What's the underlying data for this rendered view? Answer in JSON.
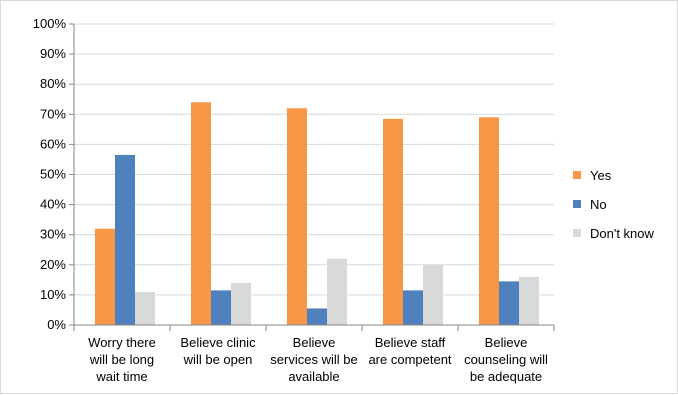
{
  "chart_data": {
    "type": "bar",
    "title": "",
    "xlabel": "",
    "ylabel": "",
    "ylim": [
      0,
      100
    ],
    "y_ticks": [
      "0%",
      "10%",
      "20%",
      "30%",
      "40%",
      "50%",
      "60%",
      "70%",
      "80%",
      "90%",
      "100%"
    ],
    "y_tick_values": [
      0,
      10,
      20,
      30,
      40,
      50,
      60,
      70,
      80,
      90,
      100
    ],
    "grid": true,
    "legend_position": "right",
    "categories": [
      [
        "Worry there",
        "will be long",
        "wait time"
      ],
      [
        "Believe clinic",
        "will be open"
      ],
      [
        "Believe",
        "services will be",
        "available"
      ],
      [
        "Believe staff",
        "are competent"
      ],
      [
        "Believe",
        "counseling will",
        "be adequate"
      ]
    ],
    "series": [
      {
        "name": "Yes",
        "color": "#F79646",
        "values": [
          32,
          74,
          72,
          68.5,
          69
        ]
      },
      {
        "name": "No",
        "color": "#4F81BD",
        "values": [
          56.5,
          11.5,
          5.5,
          11.5,
          14.5
        ]
      },
      {
        "name": "Don't know",
        "color": "#D9D9D9",
        "values": [
          11,
          14,
          22,
          20,
          16
        ]
      }
    ]
  }
}
